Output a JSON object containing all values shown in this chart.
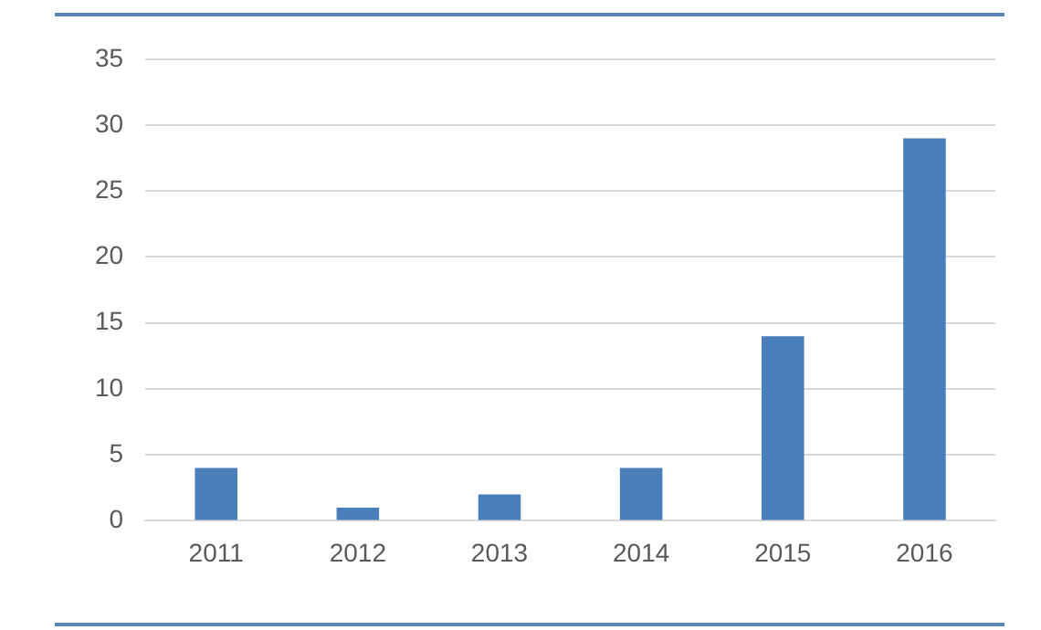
{
  "chart_data": {
    "type": "bar",
    "categories": [
      "2011",
      "2012",
      "2013",
      "2014",
      "2015",
      "2016"
    ],
    "values": [
      4,
      1,
      2,
      4,
      14,
      29
    ],
    "color": "#4a7ebb",
    "ylim": [
      0,
      35
    ],
    "yticks": [
      0,
      5,
      10,
      15,
      20,
      25,
      30,
      35
    ],
    "grid": "y"
  }
}
